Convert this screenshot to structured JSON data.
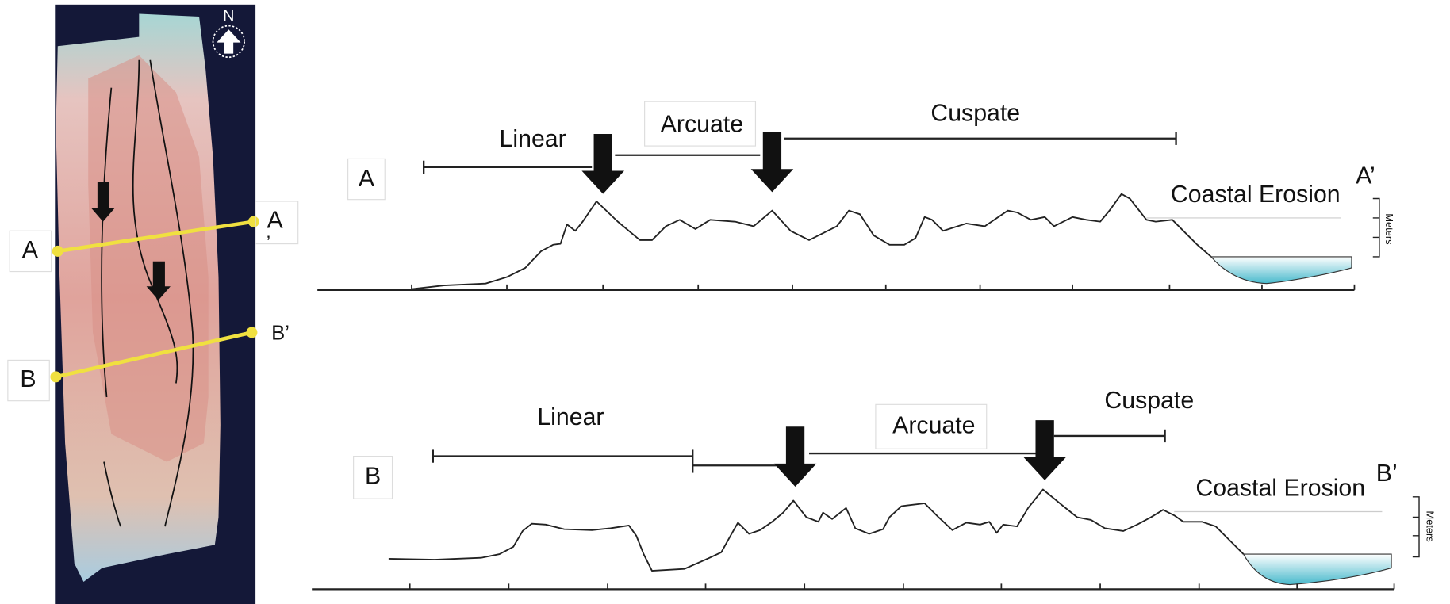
{
  "map": {
    "north_label": "N",
    "labels": [
      "A",
      "A",
      "’",
      "B’",
      "B"
    ]
  },
  "profiles": [
    {
      "label": "A",
      "zones": [
        "Linear",
        "Arcuate",
        "Cuspate"
      ],
      "erosion_label": "Coastal Erosion",
      "end_label": "A’",
      "unit_label": "Meters"
    },
    {
      "label": "B",
      "zones": [
        "Linear",
        "Arcuate",
        "Cuspate"
      ],
      "erosion_label": "Coastal Erosion",
      "end_label": "B’",
      "unit_label": "Meters"
    }
  ]
}
